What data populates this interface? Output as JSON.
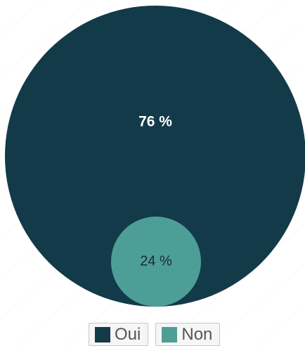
{
  "chart_data": {
    "type": "bubble-pie",
    "categories": [
      "Oui",
      "Non"
    ],
    "values": [
      76,
      24
    ],
    "labels": [
      "76 %",
      "24 %"
    ],
    "colors": [
      "#133a49",
      "#4d9e97"
    ],
    "label_colors": [
      "#ffffff",
      "#1f2a2e"
    ],
    "legend": {
      "position": "bottom-center",
      "items": [
        "Oui",
        "Non"
      ]
    }
  }
}
